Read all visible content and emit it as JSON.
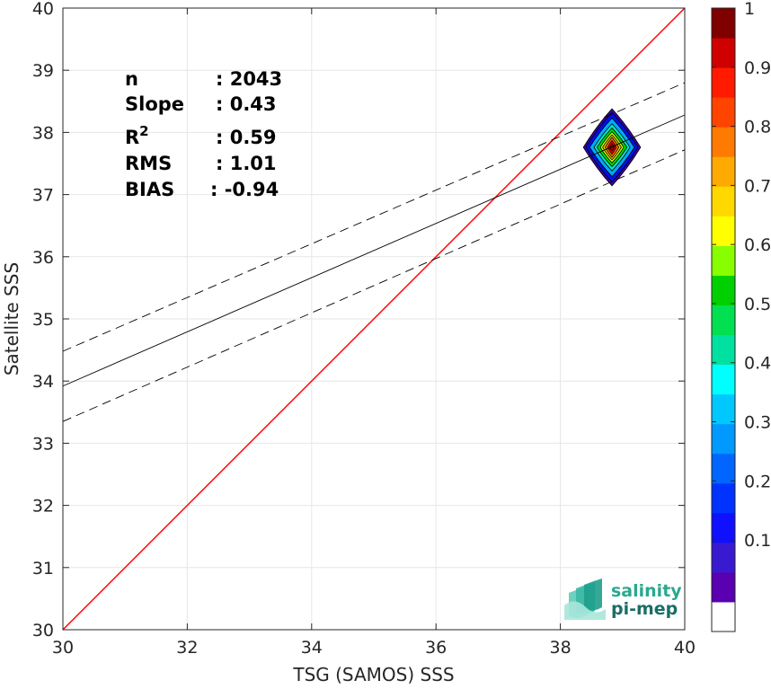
{
  "chart_data": {
    "type": "scatter",
    "subtype": "density-contour",
    "xlabel": "TSG (SAMOS) SSS",
    "ylabel": "Satellite SSS",
    "xlim": [
      30,
      40
    ],
    "ylim": [
      30,
      40
    ],
    "xticks": [
      30,
      32,
      34,
      36,
      38,
      40
    ],
    "yticks": [
      30,
      31,
      32,
      33,
      34,
      35,
      36,
      37,
      38,
      39,
      40
    ],
    "grid": true,
    "stats": [
      {
        "label": "n",
        "value": ": 2043"
      },
      {
        "label": "Slope",
        "value": ": 0.43"
      },
      {
        "label": "R",
        "sup": "2",
        "value": ": 0.59"
      },
      {
        "label": "RMS",
        "value": ": 1.01"
      },
      {
        "label": "BIAS",
        "value": ": -0.94"
      }
    ],
    "lines": [
      {
        "role": "one-to-one",
        "color": "#ff0000",
        "style": "solid",
        "points": [
          [
            30,
            30
          ],
          [
            40,
            40
          ]
        ]
      },
      {
        "role": "regression",
        "color": "#000000",
        "style": "solid",
        "points": [
          [
            30,
            33.92
          ],
          [
            40,
            38.28
          ]
        ]
      },
      {
        "role": "regression-upper",
        "color": "#000000",
        "style": "dashed",
        "points": [
          [
            30,
            34.48
          ],
          [
            40,
            38.8
          ]
        ]
      },
      {
        "role": "regression-lower",
        "color": "#000000",
        "style": "dashed",
        "points": [
          [
            30,
            33.35
          ],
          [
            40,
            37.72
          ]
        ]
      }
    ],
    "density_center": {
      "x": 38.83,
      "y": 37.76
    },
    "density_levels": [
      {
        "level": 0.05,
        "rx": 0.46,
        "ry": 0.62,
        "color": "#3d00a8"
      },
      {
        "level": 0.2,
        "rx": 0.42,
        "ry": 0.56,
        "color": "#0010e8"
      },
      {
        "level": 0.3,
        "rx": 0.36,
        "ry": 0.47,
        "color": "#00aaff"
      },
      {
        "level": 0.4,
        "rx": 0.29,
        "ry": 0.38,
        "color": "#00e8c0"
      },
      {
        "level": 0.5,
        "rx": 0.24,
        "ry": 0.31,
        "color": "#00e000"
      },
      {
        "level": 0.6,
        "rx": 0.19,
        "ry": 0.25,
        "color": "#d0ff00"
      },
      {
        "level": 0.7,
        "rx": 0.15,
        "ry": 0.2,
        "color": "#ffcc00"
      },
      {
        "level": 0.8,
        "rx": 0.11,
        "ry": 0.16,
        "color": "#ff7700"
      },
      {
        "level": 0.9,
        "rx": 0.07,
        "ry": 0.11,
        "color": "#ff0000"
      },
      {
        "level": 1.0,
        "rx": 0.04,
        "ry": 0.06,
        "color": "#a00000"
      }
    ],
    "colorbar": {
      "ticks": [
        "0.1",
        "0.2",
        "0.3",
        "0.4",
        "0.5",
        "0.6",
        "0.7",
        "0.8",
        "0.9",
        "1"
      ],
      "colors": [
        "#ffffff",
        "#5a00b0",
        "#3a1ad0",
        "#1010ff",
        "#0033ff",
        "#0066ff",
        "#0099ff",
        "#00c8ff",
        "#00ffff",
        "#00e0a0",
        "#00e050",
        "#00d000",
        "#88ff00",
        "#ffff00",
        "#ffd800",
        "#ffaa00",
        "#ff7a00",
        "#ff4400",
        "#ff1a00",
        "#d00000",
        "#800000"
      ]
    }
  },
  "logo": {
    "line1": "salinity",
    "line2": "pi-mep"
  }
}
